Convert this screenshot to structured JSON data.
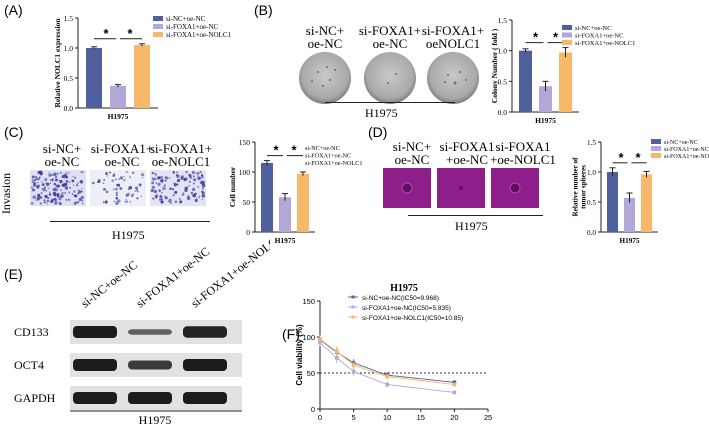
{
  "colors": {
    "nc": "#4f609c",
    "foxa": "#b3a7d8",
    "nolc": "#f7b86b",
    "purple_bg": "#8d1e8a",
    "ink": "#222222"
  },
  "panel_A": {
    "label": "(A)",
    "chart_data": {
      "type": "bar",
      "ylabel": "Relative NOLC1 expression",
      "xlabel": "H1975",
      "ylim": [
        0,
        1.5
      ],
      "yticks": [
        "0.0",
        "0.5",
        "1.0",
        "1.5"
      ],
      "categories": [
        "si-NC+oe-NC",
        "si-FOXA1+oe-NC",
        "si-FOXA1+oe-NOLC1"
      ],
      "values": [
        1.0,
        0.37,
        1.05
      ],
      "errors": [
        0.02,
        0.02,
        0.02
      ],
      "star": "*"
    }
  },
  "panel_B": {
    "label": "(B)",
    "groups": [
      "si-NC+\noe-NC",
      "si-FOXA1+\noe-NC",
      "si-FOXA1+\noeNOLC1"
    ],
    "cellline": "H1975",
    "chart_data": {
      "type": "bar",
      "ylabel": "Colony Number ( fold )",
      "xlabel": "H1975",
      "ylim": [
        0,
        1.5
      ],
      "yticks": [
        "0.0",
        "0.5",
        "1.0",
        "1.5"
      ],
      "categories": [
        "si-NC+oe-NC",
        "si-FOXA1+oe-NC",
        "si-FOXA1+oe-NOLC1"
      ],
      "values": [
        1.0,
        0.42,
        0.97
      ],
      "errors": [
        0.03,
        0.08,
        0.08
      ],
      "star": "*"
    }
  },
  "panel_C": {
    "label": "(C)",
    "side_label": "Invasion",
    "groups": [
      "si-NC+\noe-NC",
      "si-FOXA1+\noe-NC",
      "si-FOXA1+\noe-NOLC1"
    ],
    "cellline": "H1975",
    "chart_data": {
      "type": "bar",
      "ylabel": "Cell number",
      "xlabel": "H1975",
      "ylim": [
        0,
        150
      ],
      "yticks": [
        "0",
        "50",
        "100",
        "150"
      ],
      "categories": [
        "si-NC+oe-NC",
        "si-FOXA1+oe-NC",
        "si-FOXA1+oe-NOLC1"
      ],
      "values": [
        115,
        58,
        97
      ],
      "errors": [
        4,
        6,
        3
      ],
      "star": "*"
    }
  },
  "panel_D": {
    "label": "(D)",
    "groups": [
      "si-NC+\noe-NC",
      "si-FOXA1\n+oe-NC",
      "si-FOXA1\n+oe-NOLC1"
    ],
    "cellline": "H1975",
    "chart_data": {
      "type": "bar",
      "ylabel": "Relative number of tumor spheres",
      "xlabel": "H1975",
      "ylim": [
        0,
        1.5
      ],
      "yticks": [
        "0.0",
        "0.5",
        "1.0",
        "1.5"
      ],
      "categories": [
        "si-NC+oe-NC",
        "si-FOXA1+oe-NC",
        "si-FOXA1+oe-NOLC1"
      ],
      "values": [
        1.0,
        0.57,
        0.96
      ],
      "errors": [
        0.07,
        0.08,
        0.05
      ],
      "star": "*"
    }
  },
  "panel_E": {
    "label": "(E)",
    "lanes": [
      "si-NC+oe-NC",
      "si-FOXA1+oe-NC",
      "si-FOXA1+oe-NOLC1"
    ],
    "proteins": [
      "CD133",
      "OCT4",
      "GAPDH"
    ],
    "band_intensity": [
      [
        1.0,
        0.45,
        0.95
      ],
      [
        1.0,
        0.75,
        1.0
      ],
      [
        1.0,
        1.0,
        1.0
      ]
    ],
    "cellline": "H1975"
  },
  "panel_F": {
    "label": "(F)",
    "chart_data": {
      "type": "line",
      "title": "H1975",
      "xlabel": "DDP(μM)",
      "ylabel": "Cell viability (%)",
      "xlim": [
        0,
        25
      ],
      "ylim": [
        0,
        150
      ],
      "xticks": [
        "0",
        "5",
        "10",
        "15",
        "20",
        "25"
      ],
      "yticks": [
        "0",
        "50",
        "100",
        "150"
      ],
      "refline": 50,
      "series": [
        {
          "name": "si-NC+oe-NC(IC50=9.968)",
          "x": [
            0,
            2.5,
            5,
            10,
            20
          ],
          "y": [
            96,
            79,
            64,
            47,
            37
          ],
          "err": [
            5,
            7,
            5,
            4,
            3
          ]
        },
        {
          "name": "si-FOXA1+oe-NC(IC50=5.835)",
          "x": [
            0,
            2.5,
            5,
            10,
            20
          ],
          "y": [
            92,
            71,
            52,
            34,
            23
          ],
          "err": [
            5,
            7,
            6,
            4,
            2
          ]
        },
        {
          "name": "si-FOXA1+oe-NOLC1(IC50=10.85)",
          "x": [
            0,
            2.5,
            5,
            10,
            20
          ],
          "y": [
            97,
            80,
            61,
            45,
            34
          ],
          "err": [
            5,
            6,
            5,
            4,
            3
          ]
        }
      ]
    }
  }
}
